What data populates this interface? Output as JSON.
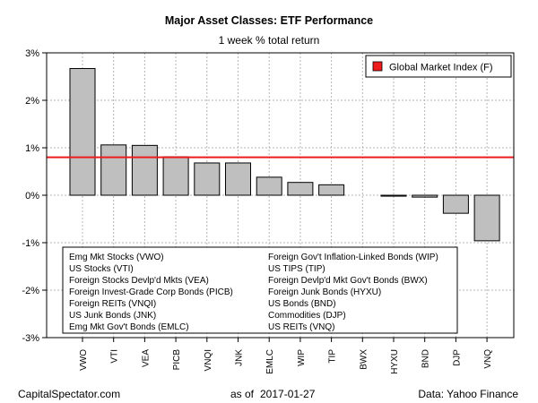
{
  "chart_data": {
    "type": "bar",
    "title": "Major Asset Classes: ETF Performance",
    "subtitle": "1 week % total return",
    "categories": [
      "VWO",
      "VTI",
      "VEA",
      "PICB",
      "VNQI",
      "JNK",
      "EMLC",
      "WIP",
      "TIP",
      "BWX",
      "HYXU",
      "BND",
      "DJP",
      "VNQ"
    ],
    "values": [
      2.67,
      1.06,
      1.05,
      0.81,
      0.68,
      0.68,
      0.38,
      0.27,
      0.22,
      0.0,
      -0.02,
      -0.04,
      -0.38,
      -0.96
    ],
    "ylim": [
      -3,
      3
    ],
    "yticks": [
      3,
      2,
      1,
      0,
      -1,
      -2,
      -3
    ],
    "ytick_labels": [
      "3%",
      "2%",
      "1%",
      "0%",
      "-1%",
      "-2%",
      "-3%"
    ],
    "grid": true,
    "reference_line": {
      "label": "Global Market Index (F)",
      "value": 0.8,
      "color": "#ee1c1c"
    },
    "bar_color": "#bfbfbf",
    "legend_position": "top-right",
    "key_left": [
      "Emg Mkt Stocks (VWO)",
      "US Stocks (VTI)",
      "Foreign Stocks Devlp'd Mkts (VEA)",
      "Foreign Invest-Grade Corp Bonds (PICB)",
      "Foreign REITs (VNQI)",
      "US Junk Bonds (JNK)",
      "Emg Mkt Gov't Bonds (EMLC)"
    ],
    "key_right": [
      "Foreign Gov't Inflation-Linked Bonds (WIP)",
      "US TIPS (TIP)",
      "Foreign Devlp'd Mkt Gov't Bonds (BWX)",
      "Foreign Junk Bonds (HYXU)",
      "US Bonds (BND)",
      "Commodities (DJP)",
      "US REITs (VNQ)"
    ]
  },
  "footer": {
    "source_left": "CapitalSpectator.com",
    "as_of_label": "as of",
    "date": "2017-01-27",
    "source_right": "Data: Yahoo Finance"
  }
}
